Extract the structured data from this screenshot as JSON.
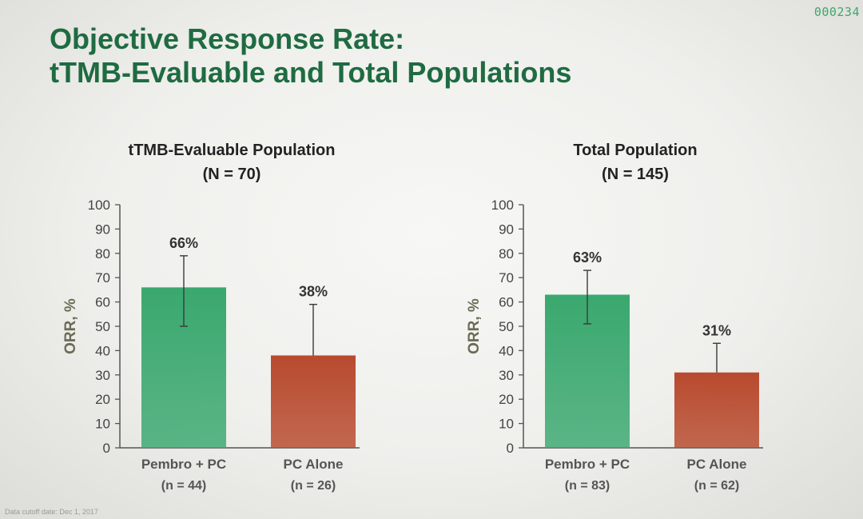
{
  "page": {
    "counter": "000234",
    "title_line1": "Objective Response Rate:",
    "title_line2": "tTMB-Evaluable and Total Populations",
    "footnote": "Data cutoff date: Dec 1, 2017"
  },
  "colors": {
    "title": "#1f6b42",
    "pembro_bar": "#3aa86f",
    "pc_bar": "#b84a2e",
    "axis": "#555555",
    "ylabel": "#6b6b55"
  },
  "chart_data": [
    {
      "type": "bar",
      "title": "tTMB-Evaluable Population",
      "subtitle": "(N = 70)",
      "ylabel": "ORR, %",
      "ylim": [
        0,
        100
      ],
      "yticks": [
        0,
        10,
        20,
        30,
        40,
        50,
        60,
        70,
        80,
        90,
        100
      ],
      "categories": [
        "Pembro + PC",
        "PC Alone"
      ],
      "category_sublabels": [
        "(n = 44)",
        "(n = 26)"
      ],
      "values": [
        66,
        38
      ],
      "value_labels": [
        "66%",
        "38%"
      ],
      "error_low": [
        50,
        38
      ],
      "error_high": [
        79,
        59
      ]
    },
    {
      "type": "bar",
      "title": "Total Population",
      "subtitle": "(N = 145)",
      "ylabel": "ORR, %",
      "ylim": [
        0,
        100
      ],
      "yticks": [
        0,
        10,
        20,
        30,
        40,
        50,
        60,
        70,
        80,
        90,
        100
      ],
      "categories": [
        "Pembro + PC",
        "PC Alone"
      ],
      "category_sublabels": [
        "(n = 83)",
        "(n = 62)"
      ],
      "values": [
        63,
        31
      ],
      "value_labels": [
        "63%",
        "31%"
      ],
      "error_low": [
        51,
        31
      ],
      "error_high": [
        73,
        43
      ]
    }
  ]
}
